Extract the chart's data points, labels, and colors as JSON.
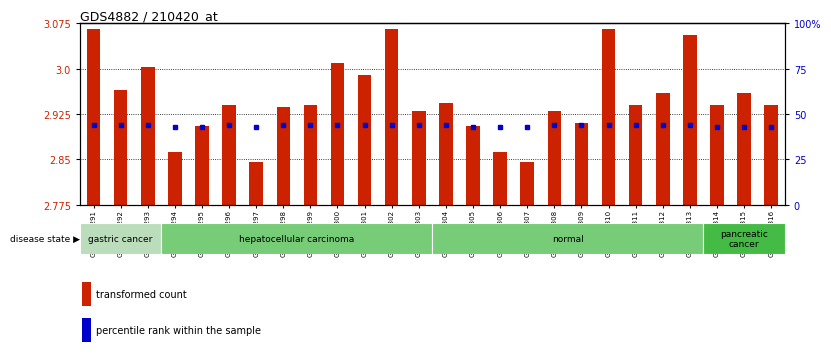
{
  "title": "GDS4882 / 210420_at",
  "samples": [
    "GSM1200291",
    "GSM1200292",
    "GSM1200293",
    "GSM1200294",
    "GSM1200295",
    "GSM1200296",
    "GSM1200297",
    "GSM1200298",
    "GSM1200299",
    "GSM1200300",
    "GSM1200301",
    "GSM1200302",
    "GSM1200303",
    "GSM1200304",
    "GSM1200305",
    "GSM1200306",
    "GSM1200307",
    "GSM1200308",
    "GSM1200309",
    "GSM1200310",
    "GSM1200311",
    "GSM1200312",
    "GSM1200313",
    "GSM1200314",
    "GSM1200315",
    "GSM1200316"
  ],
  "transformed_count": [
    3.065,
    2.965,
    3.003,
    2.863,
    2.905,
    2.94,
    2.845,
    2.937,
    2.94,
    3.01,
    2.99,
    3.065,
    2.93,
    2.943,
    2.905,
    2.863,
    2.845,
    2.93,
    2.91,
    3.065,
    2.94,
    2.96,
    3.055,
    2.94,
    2.96,
    2.94
  ],
  "percentile_values": [
    44,
    44,
    44,
    43,
    43,
    44,
    43,
    44,
    44,
    44,
    44,
    44,
    44,
    44,
    43,
    43,
    43,
    44,
    44,
    44,
    44,
    44,
    44,
    43,
    43,
    43
  ],
  "ymin": 2.775,
  "ymax": 3.075,
  "yticks_left": [
    2.775,
    2.85,
    2.925,
    3.0,
    3.075
  ],
  "yticks_right_vals": [
    0,
    25,
    50,
    75,
    100
  ],
  "bar_color": "#cc2200",
  "dot_color": "#0000cc",
  "disease_groups": [
    {
      "label": "gastric cancer",
      "start": 0,
      "end": 3,
      "color": "#bbddbb"
    },
    {
      "label": "hepatocellular carcinoma",
      "start": 3,
      "end": 13,
      "color": "#77cc77"
    },
    {
      "label": "normal",
      "start": 13,
      "end": 23,
      "color": "#77cc77"
    },
    {
      "label": "pancreatic\ncancer",
      "start": 23,
      "end": 26,
      "color": "#44bb44"
    }
  ],
  "label_transformed": "transformed count",
  "label_percentile": "percentile rank within the sample",
  "disease_state_label": "disease state"
}
